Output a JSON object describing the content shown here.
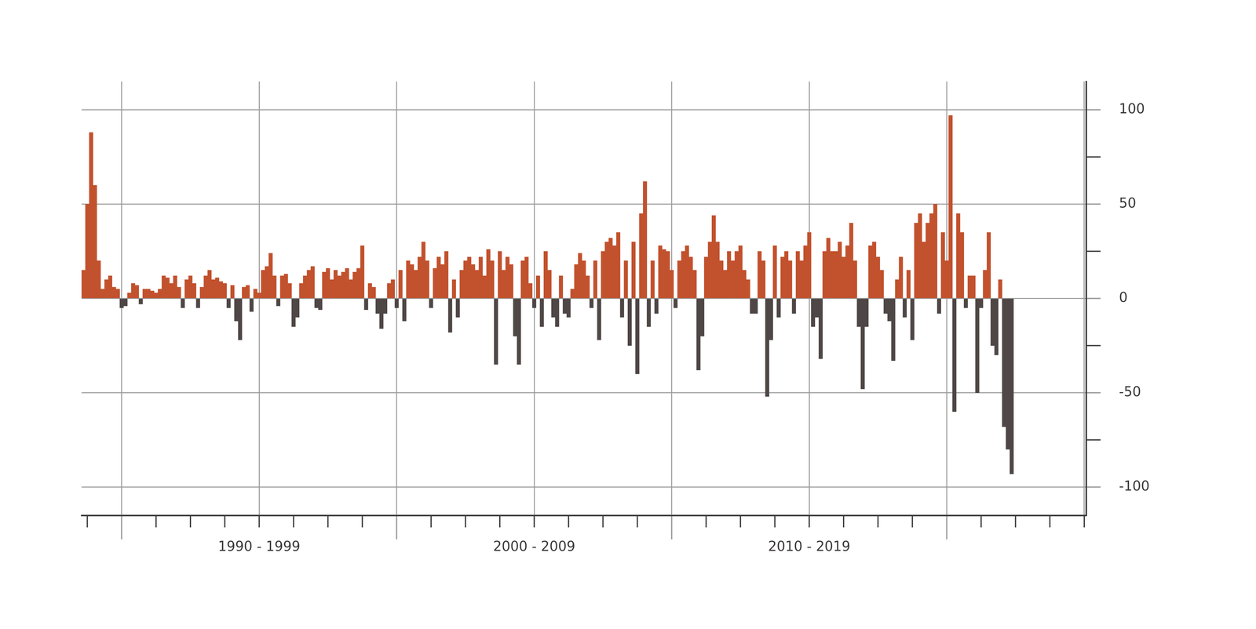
{
  "chart_data": {
    "type": "bar",
    "categories": [
      null,
      null,
      null,
      null,
      null,
      null,
      null,
      null,
      null,
      null,
      null,
      null,
      null,
      null,
      null,
      null,
      null,
      null,
      null,
      null,
      null,
      null,
      null,
      null,
      null,
      null,
      null,
      null,
      null,
      null,
      null,
      null,
      null,
      null,
      null,
      null,
      null,
      null,
      null,
      null,
      null,
      null,
      null,
      null,
      null,
      null,
      "1990 - 1999",
      null,
      null,
      null,
      null,
      null,
      null,
      null,
      null,
      null,
      null,
      null,
      null,
      null,
      null,
      null,
      null,
      null,
      null,
      null,
      null,
      null,
      null,
      null,
      null,
      null,
      null,
      null,
      null,
      null,
      null,
      null,
      null,
      null,
      null,
      null,
      null,
      null,
      null,
      null,
      null,
      null,
      null,
      null,
      null,
      null,
      null,
      null,
      null,
      null,
      null,
      null,
      null,
      null,
      null,
      null,
      null,
      null,
      null,
      null,
      null,
      null,
      null,
      null,
      null,
      null,
      null,
      null,
      null,
      null,
      null,
      null,
      "2000 - 2009",
      null,
      null,
      null,
      null,
      null,
      null,
      null,
      null,
      null,
      null,
      null,
      null,
      null,
      null,
      null,
      null,
      null,
      null,
      null,
      null,
      null,
      null,
      null,
      null,
      null,
      null,
      null,
      null,
      null,
      null,
      null,
      null,
      null,
      null,
      null,
      null,
      null,
      null,
      null,
      null,
      null,
      null,
      null,
      null,
      null,
      null,
      null,
      null,
      null,
      null,
      null,
      null,
      null,
      null,
      null,
      null,
      null,
      null,
      null,
      null,
      null,
      null,
      null,
      null,
      null,
      null,
      null,
      null,
      null,
      null,
      null,
      "2010 - 2019",
      null,
      null,
      null,
      null,
      null,
      null,
      null,
      null,
      null,
      null,
      null,
      null,
      null,
      null,
      null,
      null,
      null,
      null,
      null,
      null,
      null,
      null,
      null,
      null,
      null,
      null,
      null,
      null,
      null,
      null,
      null,
      null,
      null,
      null,
      null,
      null,
      null,
      null,
      null,
      null,
      null,
      null,
      null,
      null,
      null,
      null,
      null,
      null,
      null,
      null,
      null,
      null,
      null,
      null,
      null,
      null,
      null,
      null,
      null,
      null,
      null,
      null,
      null,
      null,
      null,
      null,
      null,
      null,
      null,
      null,
      null,
      null
    ],
    "values": [
      15,
      50,
      88,
      60,
      20,
      5,
      10,
      12,
      6,
      5,
      -5,
      -4,
      3,
      8,
      7,
      -3,
      5,
      5,
      4,
      3,
      5,
      12,
      11,
      8,
      12,
      6,
      -5,
      10,
      12,
      8,
      -5,
      6,
      12,
      15,
      10,
      11,
      9,
      8,
      -5,
      7,
      -12,
      -22,
      6,
      7,
      -7,
      5,
      3,
      15,
      17,
      24,
      12,
      -4,
      12,
      13,
      8,
      -15,
      -10,
      8,
      12,
      15,
      17,
      -5,
      -6,
      14,
      16,
      10,
      15,
      12,
      14,
      16,
      10,
      14,
      16,
      28,
      -6,
      8,
      6,
      -8,
      -16,
      -8,
      8,
      10,
      -5,
      15,
      -12,
      20,
      18,
      15,
      22,
      30,
      20,
      -5,
      16,
      22,
      18,
      25,
      -18,
      10,
      -10,
      15,
      20,
      22,
      18,
      15,
      22,
      12,
      26,
      20,
      -35,
      25,
      15,
      22,
      18,
      -20,
      -35,
      20,
      22,
      8,
      -5,
      12,
      -15,
      25,
      15,
      -10,
      -15,
      12,
      -8,
      -10,
      5,
      18,
      24,
      20,
      12,
      -5,
      20,
      -22,
      25,
      30,
      32,
      28,
      35,
      -10,
      20,
      -25,
      30,
      -40,
      45,
      62,
      -15,
      20,
      -8,
      28,
      26,
      25,
      15,
      -5,
      20,
      25,
      28,
      22,
      15,
      -38,
      -20,
      22,
      30,
      44,
      30,
      20,
      15,
      25,
      20,
      25,
      28,
      15,
      10,
      -8,
      -8,
      25,
      20,
      -52,
      -22,
      28,
      -10,
      22,
      25,
      20,
      -8,
      25,
      20,
      28,
      35,
      -15,
      -10,
      -32,
      25,
      32,
      25,
      25,
      30,
      22,
      28,
      40,
      20,
      -15,
      -48,
      -15,
      28,
      30,
      22,
      15,
      -8,
      -12,
      -33,
      10,
      22,
      -10,
      15,
      -22,
      40,
      45,
      30,
      40,
      45,
      50,
      -8,
      35,
      20,
      97,
      -60,
      45,
      35,
      -5,
      12,
      12,
      -50,
      -5,
      15,
      35,
      -25,
      -30,
      10,
      -68,
      -80,
      -93,
      null,
      null,
      null,
      null,
      null,
      null,
      null,
      null,
      null,
      null,
      null,
      null,
      null,
      null,
      null,
      null,
      null,
      null,
      null
    ],
    "colors": [
      "#c2512d",
      "#c2512d",
      "#c2512d",
      "#c2512d",
      "#c2512d",
      "#c2512d",
      "#c2512d",
      "#c2512d",
      "#c2512d",
      "#c2512d",
      "#4e4745",
      "#4e4745",
      "#c2512d",
      "#c2512d",
      "#c2512d",
      "#4e4745",
      "#c2512d",
      "#c2512d",
      "#c2512d",
      "#c2512d",
      "#c2512d",
      "#c2512d",
      "#c2512d",
      "#c2512d",
      "#c2512d",
      "#c2512d",
      "#4e4745",
      "#c2512d",
      "#c2512d",
      "#c2512d",
      "#4e4745",
      "#c2512d",
      "#c2512d",
      "#c2512d",
      "#c2512d",
      "#c2512d",
      "#c2512d",
      "#c2512d",
      "#4e4745",
      "#c2512d",
      "#4e4745",
      "#4e4745",
      "#c2512d",
      "#c2512d",
      "#4e4745",
      "#c2512d",
      "#c2512d",
      "#c2512d",
      "#c2512d",
      "#c2512d",
      "#c2512d",
      "#4e4745",
      "#c2512d",
      "#c2512d",
      "#c2512d",
      "#4e4745",
      "#4e4745",
      "#c2512d",
      "#c2512d",
      "#c2512d",
      "#c2512d",
      "#4e4745",
      "#4e4745",
      "#c2512d",
      "#c2512d",
      "#c2512d",
      "#c2512d",
      "#c2512d",
      "#c2512d",
      "#c2512d",
      "#c2512d",
      "#c2512d",
      "#c2512d",
      "#c2512d",
      "#4e4745",
      "#c2512d",
      "#c2512d",
      "#4e4745",
      "#4e4745",
      "#4e4745",
      "#c2512d",
      "#c2512d",
      "#4e4745",
      "#c2512d",
      "#4e4745",
      "#c2512d",
      "#c2512d",
      "#c2512d",
      "#c2512d",
      "#c2512d",
      "#c2512d",
      "#4e4745",
      "#c2512d",
      "#c2512d",
      "#c2512d",
      "#c2512d",
      "#4e4745",
      "#c2512d",
      "#4e4745",
      "#c2512d",
      "#c2512d",
      "#c2512d",
      "#c2512d",
      "#c2512d",
      "#c2512d",
      "#c2512d",
      "#c2512d",
      "#c2512d",
      "#4e4745",
      "#c2512d",
      "#c2512d",
      "#c2512d",
      "#c2512d",
      "#4e4745",
      "#4e4745",
      "#c2512d",
      "#c2512d",
      "#c2512d",
      "#4e4745",
      "#c2512d",
      "#4e4745",
      "#c2512d",
      "#c2512d",
      "#4e4745",
      "#4e4745",
      "#c2512d",
      "#4e4745",
      "#4e4745",
      "#c2512d",
      "#c2512d",
      "#c2512d",
      "#c2512d",
      "#c2512d",
      "#4e4745",
      "#c2512d",
      "#4e4745",
      "#c2512d",
      "#c2512d",
      "#c2512d",
      "#c2512d",
      "#c2512d",
      "#4e4745",
      "#c2512d",
      "#4e4745",
      "#c2512d",
      "#4e4745",
      "#c2512d",
      "#c2512d",
      "#4e4745",
      "#c2512d",
      "#4e4745",
      "#c2512d",
      "#c2512d",
      "#c2512d",
      "#c2512d",
      "#4e4745",
      "#c2512d",
      "#c2512d",
      "#c2512d",
      "#c2512d",
      "#c2512d",
      "#4e4745",
      "#4e4745",
      "#c2512d",
      "#c2512d",
      "#c2512d",
      "#c2512d",
      "#c2512d",
      "#c2512d",
      "#c2512d",
      "#c2512d",
      "#c2512d",
      "#c2512d",
      "#c2512d",
      "#c2512d",
      "#4e4745",
      "#4e4745",
      "#c2512d",
      "#c2512d",
      "#4e4745",
      "#4e4745",
      "#c2512d",
      "#4e4745",
      "#c2512d",
      "#c2512d",
      "#c2512d",
      "#4e4745",
      "#c2512d",
      "#c2512d",
      "#c2512d",
      "#c2512d",
      "#4e4745",
      "#4e4745",
      "#4e4745",
      "#c2512d",
      "#c2512d",
      "#c2512d",
      "#c2512d",
      "#c2512d",
      "#c2512d",
      "#c2512d",
      "#c2512d",
      "#c2512d",
      "#4e4745",
      "#4e4745",
      "#4e4745",
      "#c2512d",
      "#c2512d",
      "#c2512d",
      "#c2512d",
      "#4e4745",
      "#4e4745",
      "#4e4745",
      "#c2512d",
      "#c2512d",
      "#4e4745",
      "#c2512d",
      "#4e4745",
      "#c2512d",
      "#c2512d",
      "#c2512d",
      "#c2512d",
      "#c2512d",
      "#c2512d",
      "#4e4745",
      "#c2512d",
      "#c2512d",
      "#c2512d",
      "#4e4745",
      "#c2512d",
      "#c2512d",
      "#4e4745",
      "#c2512d",
      "#c2512d",
      "#4e4745",
      "#4e4745",
      "#c2512d",
      "#c2512d",
      "#4e4745",
      "#4e4745",
      "#c2512d",
      "#4e4745",
      "#4e4745",
      "#4e4745",
      null,
      null,
      null,
      null,
      null,
      null,
      null,
      null,
      null,
      null,
      null,
      null,
      null,
      null,
      null,
      null,
      null,
      null,
      null
    ],
    "ylim": [
      -115,
      115
    ],
    "yticks": [
      -100,
      -50,
      0,
      50,
      100
    ],
    "grid": true
  }
}
